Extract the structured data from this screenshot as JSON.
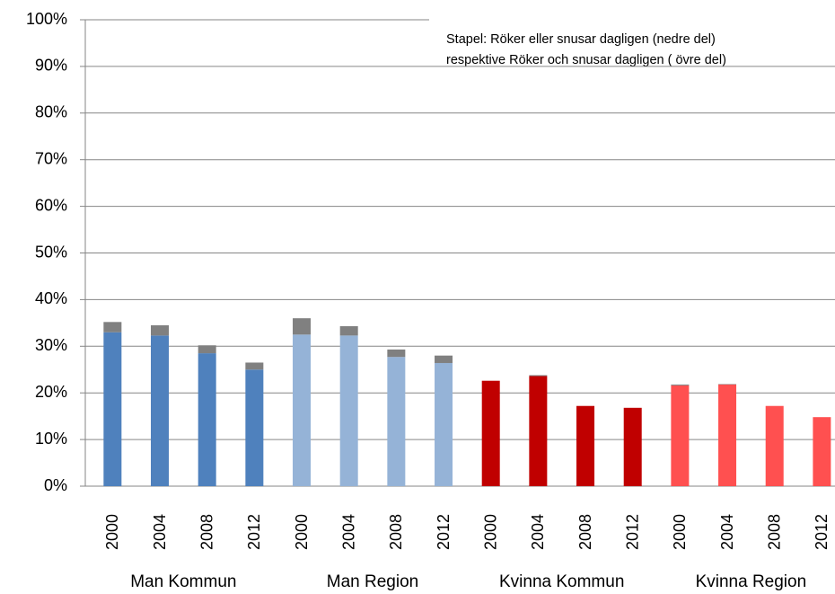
{
  "chart_data": {
    "type": "bar",
    "stacked": true,
    "annotation": [
      "Stapel: Röker eller snusar dagligen (nedre del)",
      "respektive  Röker och snusar dagligen ( övre del)"
    ],
    "categories": [
      "2000",
      "2004",
      "2008",
      "2012",
      "2000",
      "2004",
      "2008",
      "2012",
      "2000",
      "2004",
      "2008",
      "2012",
      "2000",
      "2004",
      "2008",
      "2012"
    ],
    "groups": [
      "Man Kommun",
      "Man Region",
      "Kvinna Kommun",
      "Kvinna Region"
    ],
    "series": [
      {
        "colors": [
          "#4f81bd",
          "#4f81bd",
          "#4f81bd",
          "#4f81bd",
          "#95b3d7",
          "#95b3d7",
          "#95b3d7",
          "#95b3d7",
          "#c00000",
          "#c00000",
          "#c00000",
          "#c00000",
          "#ff5050",
          "#ff5050",
          "#ff5050",
          "#ff5050"
        ],
        "values": [
          33,
          32.3,
          28.5,
          25,
          32.5,
          32.3,
          27.7,
          26.4,
          22.6,
          23.6,
          17.2,
          16.8,
          21.6,
          21.8,
          17.2,
          14.8
        ]
      },
      {
        "color": "#808080",
        "values": [
          2.2,
          2.2,
          1.7,
          1.5,
          3.5,
          2,
          1.6,
          1.6,
          0,
          0.2,
          0,
          0,
          0.2,
          0.1,
          0,
          0
        ]
      }
    ],
    "ylim": [
      0,
      100
    ],
    "yticks": [
      {
        "value": 0,
        "label": "0%"
      },
      {
        "value": 10,
        "label": "10%"
      },
      {
        "value": 20,
        "label": "20%"
      },
      {
        "value": 30,
        "label": "30%"
      },
      {
        "value": 40,
        "label": "40%"
      },
      {
        "value": 50,
        "label": "50%"
      },
      {
        "value": 60,
        "label": "60%"
      },
      {
        "value": 70,
        "label": "70%"
      },
      {
        "value": 80,
        "label": "80%"
      },
      {
        "value": 90,
        "label": "90%"
      },
      {
        "value": 100,
        "label": "100%"
      }
    ],
    "grid": true
  }
}
